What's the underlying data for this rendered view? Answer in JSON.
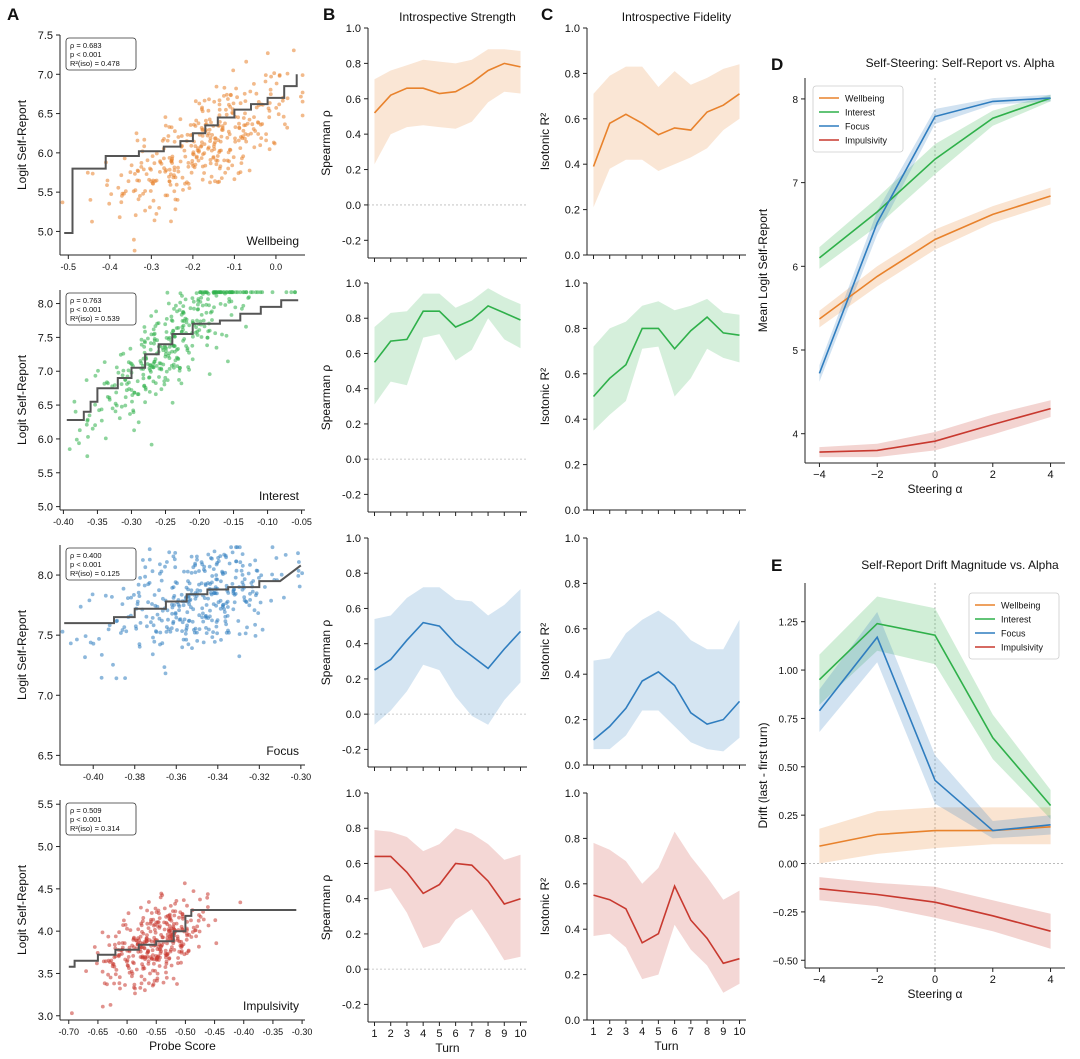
{
  "colors": {
    "wellbeing": "#e8822c",
    "interest": "#2fb04a",
    "focus": "#2f7dbf",
    "impulsivity": "#c8392f",
    "step": "#555555",
    "zero_line": "#bbbbbb"
  },
  "chart_data": [
    {
      "panel": "A",
      "type": "scatter",
      "trait": "Wellbeing",
      "ylabel": "Logit Self-Report",
      "xlim": [
        -0.52,
        0.07
      ],
      "ylim": [
        4.7,
        7.5
      ],
      "xticks": [
        -0.5,
        -0.4,
        -0.3,
        -0.2,
        -0.1,
        0.0
      ],
      "xtick_labels": [
        "-0.5",
        "-0.4",
        "-0.3",
        "-0.2",
        "-0.1",
        "0.0"
      ],
      "yticks": [
        5.0,
        5.5,
        6.0,
        6.5,
        7.0,
        7.5
      ],
      "ytick_labels": [
        "5.0",
        "5.5",
        "6.0",
        "6.5",
        "7.0",
        "7.5"
      ],
      "stats": [
        "ρ = 0.683",
        "p < 0.001",
        "R²(iso) = 0.478"
      ],
      "step_x": [
        -0.51,
        -0.49,
        -0.49,
        -0.41,
        -0.41,
        -0.33,
        -0.33,
        -0.27,
        -0.27,
        -0.23,
        -0.23,
        -0.2,
        -0.2,
        -0.17,
        -0.17,
        -0.14,
        -0.14,
        -0.1,
        -0.1,
        -0.06,
        -0.06,
        -0.02,
        -0.02,
        0.02,
        0.02,
        0.05,
        0.05
      ],
      "step_y": [
        4.98,
        4.98,
        5.8,
        5.8,
        5.96,
        5.96,
        6.02,
        6.02,
        6.08,
        6.08,
        6.15,
        6.15,
        6.25,
        6.25,
        6.35,
        6.35,
        6.45,
        6.45,
        6.55,
        6.55,
        6.62,
        6.62,
        6.7,
        6.7,
        6.85,
        6.85,
        7.0
      ],
      "cloud": {
        "n": 360,
        "x_mean": -0.17,
        "x_sd": 0.11,
        "slope": 2.6,
        "intercept": 6.55,
        "noise": 0.33
      }
    },
    {
      "panel": "A",
      "type": "scatter",
      "trait": "Interest",
      "ylabel": "Logit Self-Report",
      "xlim": [
        -0.405,
        -0.045
      ],
      "ylim": [
        4.95,
        8.2
      ],
      "xticks": [
        -0.4,
        -0.35,
        -0.3,
        -0.25,
        -0.2,
        -0.15,
        -0.1,
        -0.05
      ],
      "xtick_labels": [
        "-0.40",
        "-0.35",
        "-0.30",
        "-0.25",
        "-0.20",
        "-0.15",
        "-0.10",
        "-0.05"
      ],
      "yticks": [
        5.0,
        5.5,
        6.0,
        6.5,
        7.0,
        7.5,
        8.0
      ],
      "ytick_labels": [
        "5.0",
        "5.5",
        "6.0",
        "6.5",
        "7.0",
        "7.5",
        "8.0"
      ],
      "stats": [
        "ρ = 0.763",
        "p < 0.001",
        "R²(iso) = 0.539"
      ],
      "step_x": [
        -0.395,
        -0.37,
        -0.37,
        -0.36,
        -0.36,
        -0.35,
        -0.35,
        -0.32,
        -0.32,
        -0.3,
        -0.3,
        -0.28,
        -0.28,
        -0.26,
        -0.26,
        -0.24,
        -0.24,
        -0.21,
        -0.21,
        -0.17,
        -0.17,
        -0.14,
        -0.14,
        -0.11,
        -0.11,
        -0.08,
        -0.08,
        -0.055
      ],
      "step_y": [
        6.28,
        6.28,
        6.4,
        6.4,
        6.55,
        6.55,
        6.75,
        6.75,
        6.9,
        6.9,
        7.05,
        7.05,
        7.25,
        7.25,
        7.4,
        7.4,
        7.55,
        7.55,
        7.7,
        7.7,
        7.75,
        7.75,
        7.85,
        7.85,
        7.95,
        7.95,
        8.05,
        8.05
      ],
      "cloud": {
        "n": 360,
        "x_mean": -0.24,
        "x_sd": 0.06,
        "slope": 8.5,
        "intercept": 9.45,
        "noise": 0.32
      }
    },
    {
      "panel": "A",
      "type": "scatter",
      "trait": "Focus",
      "ylabel": "Logit Self-Report",
      "xlim": [
        -0.416,
        -0.298
      ],
      "ylim": [
        6.42,
        8.25
      ],
      "xticks": [
        -0.4,
        -0.38,
        -0.36,
        -0.34,
        -0.32,
        -0.3
      ],
      "xtick_labels": [
        "-0.40",
        "-0.38",
        "-0.36",
        "-0.34",
        "-0.32",
        "-0.30"
      ],
      "yticks": [
        6.5,
        7.0,
        7.5,
        8.0
      ],
      "ytick_labels": [
        "6.5",
        "7.0",
        "7.5",
        "8.0"
      ],
      "stats": [
        "ρ = 0.400",
        "p < 0.001",
        "R²(iso) = 0.125"
      ],
      "step_x": [
        -0.414,
        -0.39,
        -0.39,
        -0.38,
        -0.38,
        -0.365,
        -0.365,
        -0.355,
        -0.355,
        -0.345,
        -0.345,
        -0.335,
        -0.335,
        -0.32,
        -0.32,
        -0.31,
        -0.31,
        -0.3
      ],
      "step_y": [
        7.6,
        7.6,
        7.65,
        7.65,
        7.72,
        7.72,
        7.78,
        7.78,
        7.84,
        7.84,
        7.88,
        7.88,
        7.9,
        7.9,
        7.95,
        7.95,
        7.95,
        8.08
      ],
      "cloud": {
        "n": 360,
        "x_mean": -0.35,
        "x_sd": 0.022,
        "slope": 5.0,
        "intercept": 9.55,
        "noise": 0.22
      }
    },
    {
      "panel": "A",
      "type": "scatter",
      "trait": "Impulsivity",
      "ylabel": "Logit Self-Report",
      "xlabel": "Probe Score",
      "xlim": [
        -0.715,
        -0.295
      ],
      "ylim": [
        2.95,
        5.55
      ],
      "xticks": [
        -0.7,
        -0.65,
        -0.6,
        -0.55,
        -0.5,
        -0.45,
        -0.4,
        -0.35,
        -0.3
      ],
      "xtick_labels": [
        "-0.70",
        "-0.65",
        "-0.60",
        "-0.55",
        "-0.50",
        "-0.45",
        "-0.40",
        "-0.35",
        "-0.30"
      ],
      "yticks": [
        3.0,
        3.5,
        4.0,
        4.5,
        5.0,
        5.5
      ],
      "ytick_labels": [
        "3.0",
        "3.5",
        "4.0",
        "4.5",
        "5.0",
        "5.5"
      ],
      "stats": [
        "ρ = 0.509",
        "p < 0.001",
        "R²(iso) = 0.314"
      ],
      "step_x": [
        -0.7,
        -0.69,
        -0.69,
        -0.65,
        -0.65,
        -0.62,
        -0.62,
        -0.58,
        -0.58,
        -0.55,
        -0.55,
        -0.52,
        -0.52,
        -0.5,
        -0.5,
        -0.49,
        -0.49,
        -0.31
      ],
      "step_y": [
        3.58,
        3.58,
        3.65,
        3.65,
        3.72,
        3.72,
        3.78,
        3.78,
        3.84,
        3.84,
        3.88,
        3.88,
        4.0,
        4.0,
        4.18,
        4.18,
        4.25,
        4.25
      ],
      "cloud": {
        "n": 360,
        "x_mean": -0.55,
        "x_sd": 0.045,
        "slope": 2.6,
        "intercept": 5.3,
        "noise": 0.22
      }
    },
    {
      "panel": "B",
      "type": "line",
      "title": "Introspective Strength",
      "ylabel": "Spearman ρ",
      "xlabel": "Turn",
      "x": [
        1,
        2,
        3,
        4,
        5,
        6,
        7,
        8,
        9,
        10
      ],
      "ylim": [
        -0.3,
        1.0
      ],
      "yticks": [
        -0.2,
        0.0,
        0.2,
        0.4,
        0.6,
        0.8,
        1.0
      ],
      "ytick_labels": [
        "-0.2",
        "0.0",
        "0.2",
        "0.4",
        "0.6",
        "0.8",
        "1.0"
      ],
      "series": [
        {
          "trait": "wellbeing",
          "values": [
            0.52,
            0.62,
            0.66,
            0.66,
            0.63,
            0.64,
            0.69,
            0.76,
            0.8,
            0.78
          ],
          "lower": [
            0.23,
            0.4,
            0.44,
            0.45,
            0.44,
            0.43,
            0.47,
            0.58,
            0.64,
            0.63
          ],
          "upper": [
            0.71,
            0.76,
            0.79,
            0.82,
            0.81,
            0.8,
            0.82,
            0.88,
            0.88,
            0.87
          ]
        },
        {
          "trait": "interest",
          "values": [
            0.55,
            0.67,
            0.68,
            0.84,
            0.84,
            0.75,
            0.79,
            0.87,
            0.83,
            0.79
          ],
          "lower": [
            0.31,
            0.44,
            0.42,
            0.69,
            0.71,
            0.56,
            0.62,
            0.8,
            0.68,
            0.63
          ],
          "upper": [
            0.75,
            0.83,
            0.84,
            0.94,
            0.94,
            0.86,
            0.9,
            0.97,
            0.92,
            0.88
          ]
        },
        {
          "trait": "focus",
          "values": [
            0.25,
            0.31,
            0.42,
            0.52,
            0.5,
            0.4,
            0.33,
            0.26,
            0.37,
            0.47
          ],
          "lower": [
            -0.06,
            0.02,
            0.13,
            0.28,
            0.25,
            0.1,
            -0.01,
            -0.06,
            0.08,
            0.18
          ],
          "upper": [
            0.54,
            0.56,
            0.66,
            0.72,
            0.72,
            0.65,
            0.64,
            0.56,
            0.62,
            0.71
          ]
        },
        {
          "trait": "impulsivity",
          "values": [
            0.64,
            0.64,
            0.55,
            0.43,
            0.48,
            0.6,
            0.59,
            0.5,
            0.37,
            0.4
          ],
          "lower": [
            0.44,
            0.46,
            0.32,
            0.12,
            0.15,
            0.28,
            0.34,
            0.2,
            0.05,
            0.07
          ],
          "upper": [
            0.79,
            0.78,
            0.75,
            0.67,
            0.71,
            0.8,
            0.77,
            0.71,
            0.62,
            0.65
          ]
        }
      ]
    },
    {
      "panel": "C",
      "type": "line",
      "title": "Introspective Fidelity",
      "ylabel": "Isotonic R²",
      "xlabel": "Turn",
      "x": [
        1,
        2,
        3,
        4,
        5,
        6,
        7,
        8,
        9,
        10
      ],
      "ylim": [
        0.0,
        1.0
      ],
      "yticks": [
        0.0,
        0.2,
        0.4,
        0.6,
        0.8,
        1.0
      ],
      "ytick_labels": [
        "0.0",
        "0.2",
        "0.4",
        "0.6",
        "0.8",
        "1.0"
      ],
      "series": [
        {
          "trait": "wellbeing",
          "values": [
            0.39,
            0.58,
            0.62,
            0.58,
            0.53,
            0.56,
            0.55,
            0.63,
            0.66,
            0.71
          ],
          "lower": [
            0.21,
            0.38,
            0.42,
            0.42,
            0.37,
            0.4,
            0.43,
            0.47,
            0.55,
            0.6
          ],
          "upper": [
            0.71,
            0.79,
            0.83,
            0.83,
            0.74,
            0.81,
            0.75,
            0.78,
            0.82,
            0.84
          ]
        },
        {
          "trait": "interest",
          "values": [
            0.5,
            0.58,
            0.64,
            0.8,
            0.8,
            0.71,
            0.79,
            0.85,
            0.78,
            0.77
          ],
          "lower": [
            0.35,
            0.42,
            0.48,
            0.71,
            0.72,
            0.5,
            0.58,
            0.71,
            0.67,
            0.65
          ],
          "upper": [
            0.72,
            0.8,
            0.83,
            0.9,
            0.92,
            0.88,
            0.9,
            0.93,
            0.87,
            0.86
          ]
        },
        {
          "trait": "focus",
          "values": [
            0.11,
            0.17,
            0.25,
            0.37,
            0.41,
            0.35,
            0.23,
            0.18,
            0.2,
            0.28
          ],
          "lower": [
            0.07,
            0.07,
            0.13,
            0.24,
            0.24,
            0.17,
            0.1,
            0.07,
            0.06,
            0.12
          ],
          "upper": [
            0.46,
            0.47,
            0.58,
            0.64,
            0.68,
            0.63,
            0.55,
            0.51,
            0.51,
            0.64
          ]
        },
        {
          "trait": "impulsivity",
          "values": [
            0.55,
            0.53,
            0.49,
            0.34,
            0.38,
            0.59,
            0.44,
            0.36,
            0.25,
            0.27
          ],
          "lower": [
            0.37,
            0.38,
            0.32,
            0.18,
            0.2,
            0.42,
            0.31,
            0.24,
            0.12,
            0.16
          ],
          "upper": [
            0.78,
            0.75,
            0.7,
            0.6,
            0.67,
            0.83,
            0.72,
            0.63,
            0.53,
            0.57
          ]
        }
      ]
    },
    {
      "panel": "D",
      "type": "line",
      "title": "Self-Steering: Self-Report vs. Alpha",
      "ylabel": "Mean Logit Self-Report",
      "xlabel": "Steering α",
      "x": [
        -4,
        -2,
        0,
        2,
        4
      ],
      "xlim": [
        -4.5,
        4.5
      ],
      "ylim": [
        3.65,
        8.25
      ],
      "xticks": [
        -4,
        -2,
        0,
        2,
        4
      ],
      "xtick_labels": [
        "−4",
        "−2",
        "0",
        "2",
        "4"
      ],
      "yticks": [
        4,
        5,
        6,
        7,
        8
      ],
      "ytick_labels": [
        "4",
        "5",
        "6",
        "7",
        "8"
      ],
      "legend": "top-left",
      "series": [
        {
          "name": "Wellbeing",
          "trait": "wellbeing",
          "values": [
            5.37,
            5.88,
            6.32,
            6.62,
            6.84
          ],
          "lower": [
            5.27,
            5.76,
            6.2,
            6.52,
            6.74
          ],
          "upper": [
            5.47,
            6.0,
            6.44,
            6.72,
            6.94
          ]
        },
        {
          "name": "Interest",
          "trait": "interest",
          "values": [
            6.1,
            6.65,
            7.28,
            7.77,
            8.01
          ],
          "lower": [
            5.97,
            6.48,
            7.1,
            7.68,
            7.97
          ],
          "upper": [
            6.23,
            6.82,
            7.46,
            7.86,
            8.05
          ]
        },
        {
          "name": "Focus",
          "trait": "focus",
          "values": [
            4.72,
            6.52,
            7.79,
            7.97,
            8.01
          ],
          "lower": [
            4.62,
            6.38,
            7.7,
            7.93,
            7.97
          ],
          "upper": [
            4.82,
            6.66,
            7.88,
            8.01,
            8.05
          ]
        },
        {
          "name": "Impulsivity",
          "trait": "impulsivity",
          "values": [
            3.78,
            3.8,
            3.91,
            4.11,
            4.3
          ],
          "lower": [
            3.72,
            3.72,
            3.8,
            3.99,
            4.2
          ],
          "upper": [
            3.84,
            3.88,
            4.02,
            4.23,
            4.4
          ]
        }
      ]
    },
    {
      "panel": "E",
      "type": "line",
      "title": "Self-Report Drift Magnitude vs. Alpha",
      "ylabel": "Drift (last - first turn)",
      "xlabel": "Steering α",
      "x": [
        -4,
        -2,
        0,
        2,
        4
      ],
      "xlim": [
        -4.5,
        4.5
      ],
      "ylim": [
        -0.54,
        1.45
      ],
      "xticks": [
        -4,
        -2,
        0,
        2,
        4
      ],
      "xtick_labels": [
        "−4",
        "−2",
        "0",
        "2",
        "4"
      ],
      "yticks": [
        -0.5,
        -0.25,
        0.0,
        0.25,
        0.5,
        0.75,
        1.0,
        1.25
      ],
      "ytick_labels": [
        "−0.50",
        "−0.25",
        "0.00",
        "0.25",
        "0.50",
        "0.75",
        "1.00",
        "1.25"
      ],
      "legend": "top-right",
      "series": [
        {
          "name": "Wellbeing",
          "trait": "wellbeing",
          "values": [
            0.09,
            0.15,
            0.17,
            0.17,
            0.19
          ],
          "lower": [
            0.0,
            0.05,
            0.08,
            0.1,
            0.1
          ],
          "upper": [
            0.18,
            0.27,
            0.29,
            0.29,
            0.29
          ]
        },
        {
          "name": "Interest",
          "trait": "interest",
          "values": [
            0.95,
            1.24,
            1.18,
            0.65,
            0.3
          ],
          "lower": [
            0.82,
            1.1,
            1.03,
            0.54,
            0.23
          ],
          "upper": [
            1.08,
            1.38,
            1.32,
            0.77,
            0.38
          ]
        },
        {
          "name": "Focus",
          "trait": "focus",
          "values": [
            0.79,
            1.17,
            0.43,
            0.17,
            0.2
          ],
          "lower": [
            0.68,
            1.04,
            0.31,
            0.13,
            0.15
          ],
          "upper": [
            0.9,
            1.3,
            0.56,
            0.22,
            0.25
          ]
        },
        {
          "name": "Impulsivity",
          "trait": "impulsivity",
          "values": [
            -0.13,
            -0.16,
            -0.2,
            -0.27,
            -0.35
          ],
          "lower": [
            -0.19,
            -0.22,
            -0.28,
            -0.35,
            -0.44
          ],
          "upper": [
            -0.07,
            -0.1,
            -0.12,
            -0.19,
            -0.26
          ]
        }
      ]
    }
  ],
  "panel_letters": [
    "A",
    "B",
    "C",
    "D",
    "E"
  ]
}
